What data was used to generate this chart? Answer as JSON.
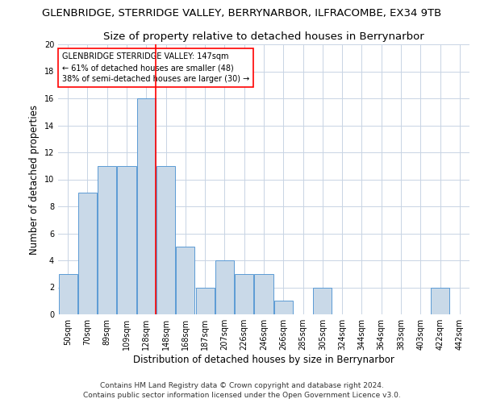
{
  "title_line1": "GLENBRIDGE, STERRIDGE VALLEY, BERRYNARBOR, ILFRACOMBE, EX34 9TB",
  "title_line2": "Size of property relative to detached houses in Berrynarbor",
  "xlabel": "Distribution of detached houses by size in Berrynarbor",
  "ylabel": "Number of detached properties",
  "categories": [
    "50sqm",
    "70sqm",
    "89sqm",
    "109sqm",
    "128sqm",
    "148sqm",
    "168sqm",
    "187sqm",
    "207sqm",
    "226sqm",
    "246sqm",
    "266sqm",
    "285sqm",
    "305sqm",
    "324sqm",
    "344sqm",
    "364sqm",
    "383sqm",
    "403sqm",
    "422sqm",
    "442sqm"
  ],
  "values": [
    3,
    9,
    11,
    11,
    16,
    11,
    5,
    2,
    4,
    3,
    3,
    1,
    0,
    2,
    0,
    0,
    0,
    0,
    0,
    2,
    0
  ],
  "bar_color": "#c9d9e8",
  "bar_edge_color": "#5b9bd5",
  "red_line_index": 5,
  "annotation_title": "GLENBRIDGE STERRIDGE VALLEY: 147sqm",
  "annotation_line2": "← 61% of detached houses are smaller (48)",
  "annotation_line3": "38% of semi-detached houses are larger (30) →",
  "ylim": [
    0,
    20
  ],
  "yticks": [
    0,
    2,
    4,
    6,
    8,
    10,
    12,
    14,
    16,
    18,
    20
  ],
  "footer_line1": "Contains HM Land Registry data © Crown copyright and database right 2024.",
  "footer_line2": "Contains public sector information licensed under the Open Government Licence v3.0.",
  "bg_color": "#ffffff",
  "grid_color": "#c8d4e4",
  "title_fontsize": 9.5,
  "subtitle_fontsize": 9.5,
  "axis_label_fontsize": 8.5,
  "tick_fontsize": 7,
  "annotation_fontsize": 7,
  "footer_fontsize": 6.5
}
